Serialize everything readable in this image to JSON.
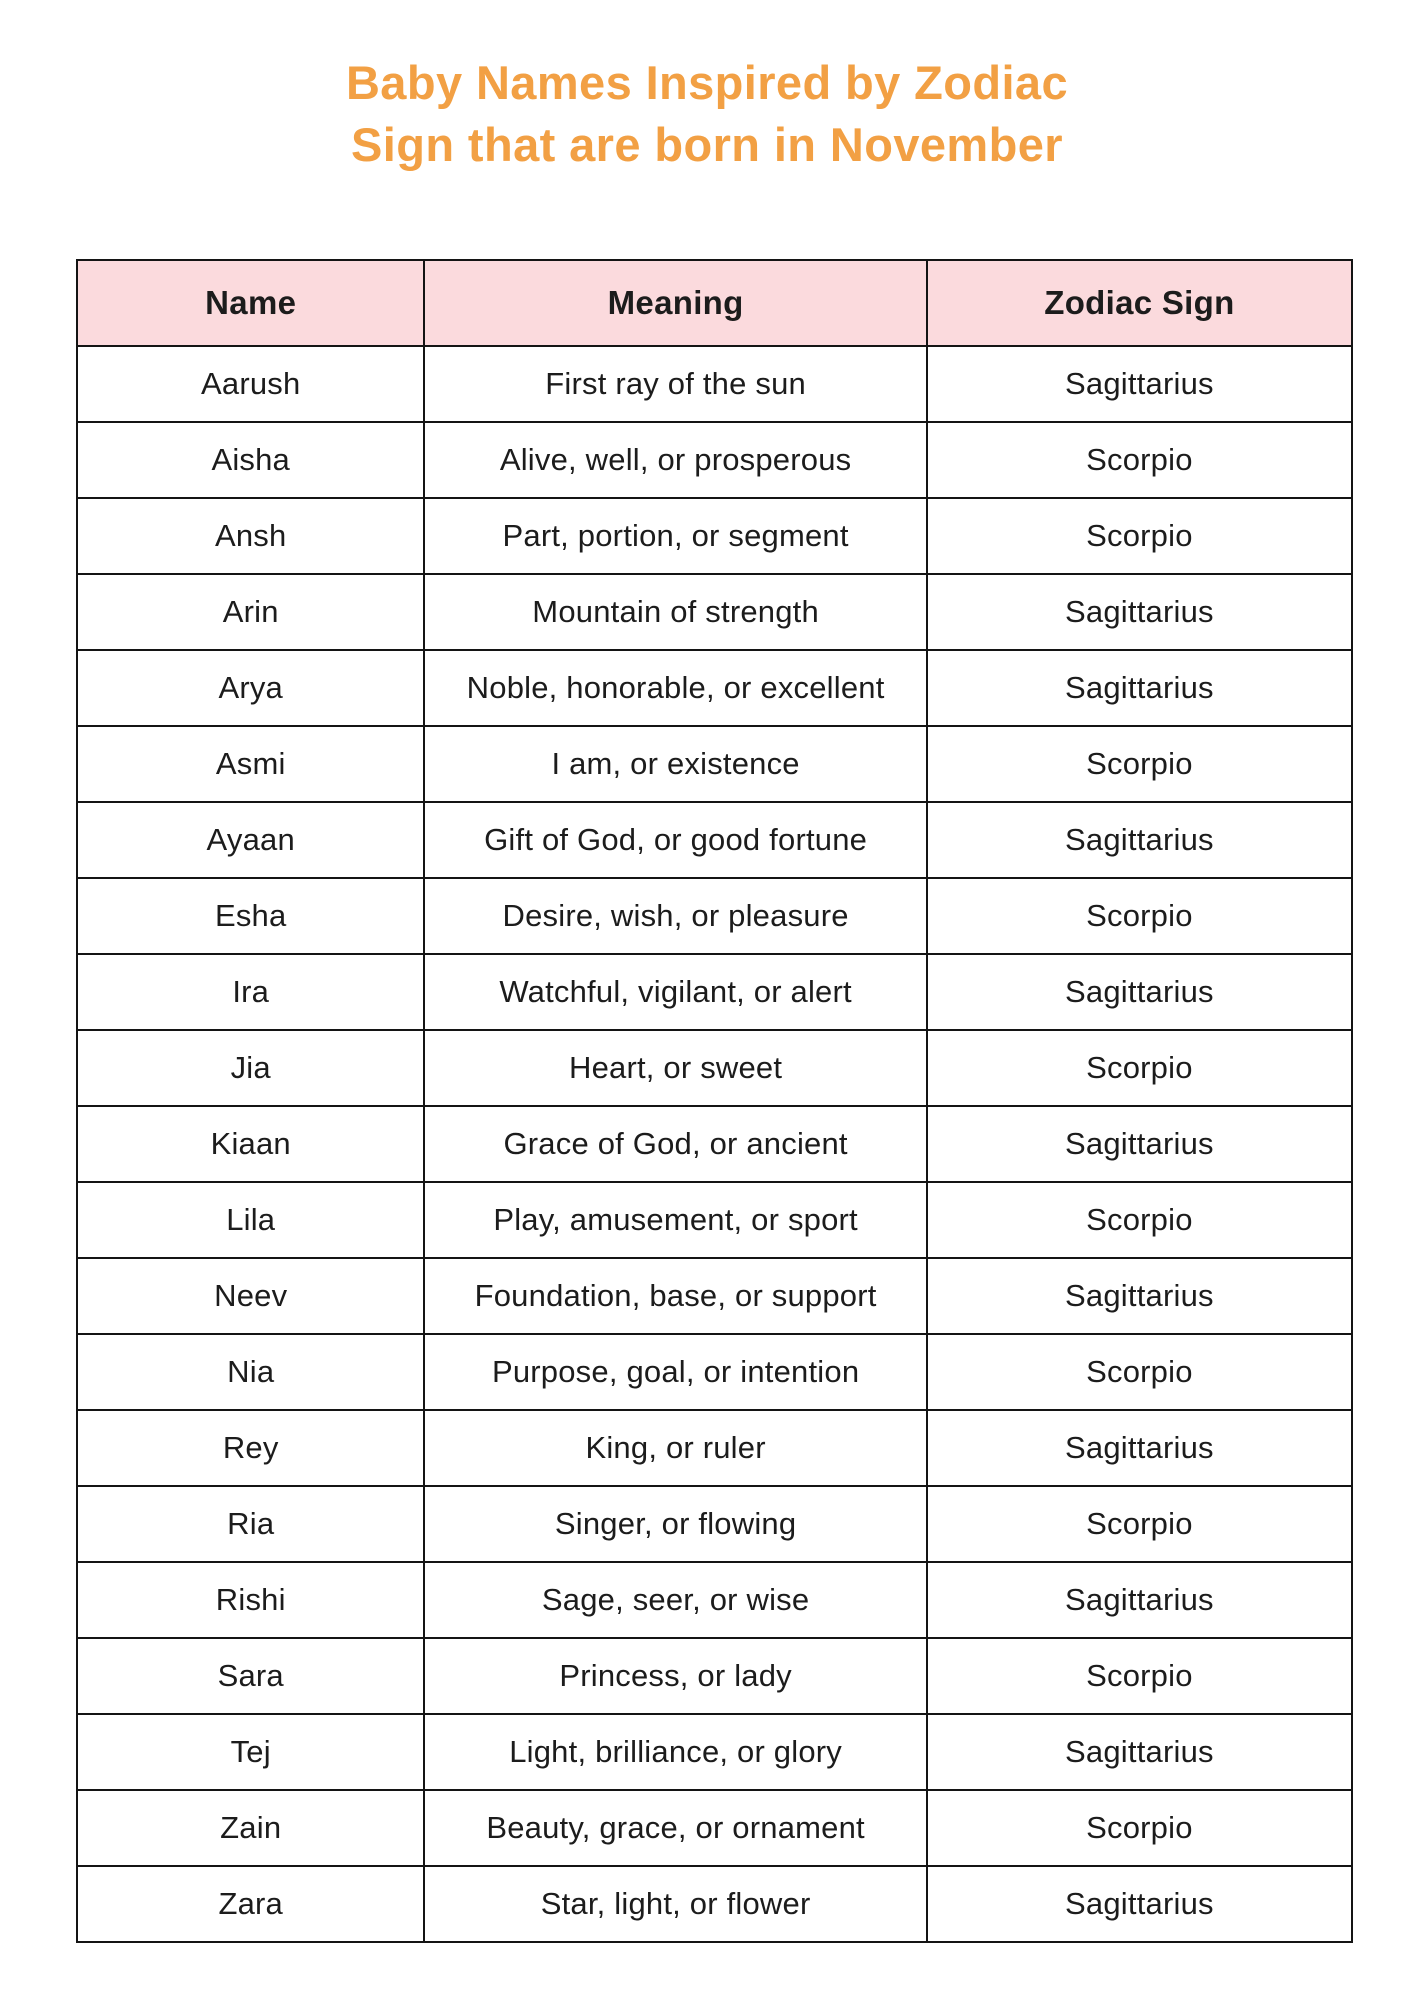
{
  "colors": {
    "title_orange": "#F2A044",
    "header_pink": "#FBDADD",
    "border_black": "#141414",
    "text_dark": "#1C1C1C",
    "page_background": "#FFFFFF"
  },
  "title": {
    "line1": "Baby Names Inspired by Zodiac",
    "line2": "Sign that are born in November"
  },
  "table": {
    "headers": [
      "Name",
      "Meaning",
      "Zodiac Sign"
    ],
    "rows": [
      {
        "name": "Aarush",
        "meaning": "First ray of the sun",
        "sign": "Sagittarius"
      },
      {
        "name": "Aisha",
        "meaning": "Alive, well, or prosperous",
        "sign": "Scorpio"
      },
      {
        "name": "Ansh",
        "meaning": "Part, portion, or segment",
        "sign": "Scorpio"
      },
      {
        "name": "Arin",
        "meaning": "Mountain of strength",
        "sign": "Sagittarius"
      },
      {
        "name": "Arya",
        "meaning": "Noble, honorable, or excellent",
        "sign": "Sagittarius"
      },
      {
        "name": "Asmi",
        "meaning": "I am, or existence",
        "sign": "Scorpio"
      },
      {
        "name": "Ayaan",
        "meaning": "Gift of God, or good fortune",
        "sign": "Sagittarius"
      },
      {
        "name": "Esha",
        "meaning": "Desire, wish, or pleasure",
        "sign": "Scorpio"
      },
      {
        "name": "Ira",
        "meaning": "Watchful, vigilant, or alert",
        "sign": "Sagittarius"
      },
      {
        "name": "Jia",
        "meaning": "Heart, or sweet",
        "sign": "Scorpio"
      },
      {
        "name": "Kiaan",
        "meaning": "Grace of God, or ancient",
        "sign": "Sagittarius"
      },
      {
        "name": "Lila",
        "meaning": "Play, amusement, or sport",
        "sign": "Scorpio"
      },
      {
        "name": "Neev",
        "meaning": "Foundation, base, or support",
        "sign": "Sagittarius"
      },
      {
        "name": "Nia",
        "meaning": "Purpose, goal, or intention",
        "sign": "Scorpio"
      },
      {
        "name": "Rey",
        "meaning": "King, or ruler",
        "sign": "Sagittarius"
      },
      {
        "name": "Ria",
        "meaning": "Singer, or flowing",
        "sign": "Scorpio"
      },
      {
        "name": "Rishi",
        "meaning": "Sage, seer, or wise",
        "sign": "Sagittarius"
      },
      {
        "name": "Sara",
        "meaning": "Princess, or lady",
        "sign": "Scorpio"
      },
      {
        "name": "Tej",
        "meaning": "Light, brilliance, or glory",
        "sign": "Sagittarius"
      },
      {
        "name": "Zain",
        "meaning": "Beauty, grace, or ornament",
        "sign": "Scorpio"
      },
      {
        "name": "Zara",
        "meaning": "Star, light, or flower",
        "sign": "Sagittarius"
      }
    ]
  }
}
